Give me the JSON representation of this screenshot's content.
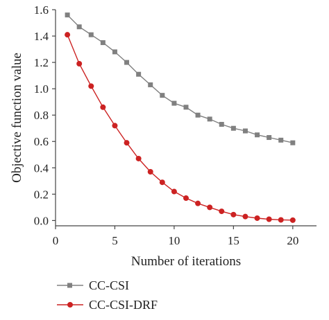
{
  "chart_data": {
    "type": "line",
    "title": "",
    "xlabel": "Number of iterations",
    "ylabel": "Objective function value",
    "xlim": [
      0,
      22
    ],
    "ylim": [
      -0.04,
      1.6
    ],
    "x_ticks": [
      0,
      5,
      10,
      15,
      20
    ],
    "y_ticks": [
      0.0,
      0.2,
      0.4,
      0.6,
      0.8,
      1.0,
      1.2,
      1.4,
      1.6
    ],
    "x_tick_labels": [
      "0",
      "5",
      "10",
      "15",
      "20"
    ],
    "y_tick_labels": [
      "0.0",
      "0.2",
      "0.4",
      "0.6",
      "0.8",
      "1.0",
      "1.2",
      "1.4",
      "1.6"
    ],
    "grid": false,
    "legend_position": "bottom-left, below the plot",
    "x": [
      1,
      2,
      3,
      4,
      5,
      6,
      7,
      8,
      9,
      10,
      11,
      12,
      13,
      14,
      15,
      16,
      17,
      18,
      19,
      20
    ],
    "series": [
      {
        "name": "CC-CSI",
        "color": "#808080",
        "marker": "square",
        "values": [
          1.56,
          1.47,
          1.41,
          1.35,
          1.28,
          1.2,
          1.11,
          1.03,
          0.95,
          0.89,
          0.86,
          0.8,
          0.77,
          0.73,
          0.7,
          0.68,
          0.65,
          0.63,
          0.61,
          0.59
        ]
      },
      {
        "name": "CC-CSI-DRF",
        "color": "#cc2222",
        "marker": "circle",
        "values": [
          1.41,
          1.19,
          1.02,
          0.86,
          0.72,
          0.59,
          0.47,
          0.37,
          0.29,
          0.22,
          0.17,
          0.13,
          0.1,
          0.07,
          0.045,
          0.03,
          0.018,
          0.01,
          0.005,
          0.003
        ]
      }
    ]
  }
}
